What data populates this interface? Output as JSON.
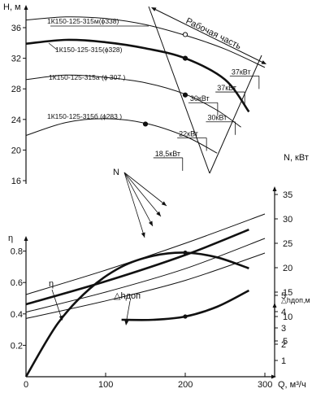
{
  "chart_data": {
    "type": "line",
    "x_axis": {
      "label": "Q, м³/ч",
      "min": 0,
      "max": 300,
      "ticks": [
        0,
        100,
        200,
        300
      ]
    },
    "y_axes": {
      "head": {
        "label": "Н, м",
        "ticks": [
          16,
          20,
          24,
          28,
          32,
          36
        ]
      },
      "efficiency": {
        "label": "η",
        "ticks": [
          0.2,
          0.4,
          0.6,
          0.8
        ]
      },
      "power": {
        "label": "N, кВт",
        "ticks": [
          5,
          10,
          15,
          20,
          25,
          30,
          35
        ]
      },
      "npsh": {
        "label": "△hдоп,м",
        "ticks": [
          1,
          2,
          3,
          4,
          5
        ]
      }
    },
    "annotations": {
      "working_zone": "Рабочая часть",
      "N_label": "N",
      "eta_label": "η",
      "npsh_label": "△hдоп"
    },
    "head_curves": [
      {
        "name": "1К150-125-315м(ϕ338)",
        "x": [
          0,
          50,
          100,
          150,
          200,
          250,
          300
        ],
        "y": [
          37.0,
          37.4,
          37.2,
          36.4,
          35.0,
          33.2,
          30.8
        ]
      },
      {
        "name": "1К150-125-315(ϕ328)",
        "x": [
          0,
          50,
          100,
          150,
          200,
          250,
          280
        ],
        "y": [
          33.9,
          34.4,
          34.1,
          33.3,
          32.0,
          29.2,
          25.0
        ]
      },
      {
        "name": "1К150-125-315а (ϕ 307 )",
        "x": [
          0,
          50,
          100,
          150,
          200,
          240,
          270
        ],
        "y": [
          29.2,
          29.8,
          29.5,
          28.8,
          27.3,
          25.2,
          23.0
        ]
      },
      {
        "name": "1К150-125-315б (ϕ283 )",
        "x": [
          0,
          50,
          100,
          150,
          200,
          240
        ],
        "y": [
          21.9,
          23.6,
          24.1,
          23.5,
          21.8,
          19.6
        ]
      }
    ],
    "motor_power_labels": [
      {
        "text": "37кВт",
        "x": 258,
        "y": 29.9
      },
      {
        "text": "37кВт",
        "x": 240,
        "y": 27.8
      },
      {
        "text": "30кВт",
        "x": 206,
        "y": 26.4
      },
      {
        "text": "30кВт",
        "x": 228,
        "y": 23.9
      },
      {
        "text": "22кВт",
        "x": 192,
        "y": 21.8
      },
      {
        "text": "18,5кВт",
        "x": 162,
        "y": 19.2
      }
    ],
    "power_curves": [
      {
        "x": [
          0,
          100,
          200,
          300
        ],
        "y": [
          14.5,
          19.5,
          25.0,
          31.0
        ]
      },
      {
        "x": [
          0,
          100,
          200,
          280
        ],
        "y": [
          12.5,
          17.2,
          22.6,
          27.8
        ]
      },
      {
        "x": [
          0,
          100,
          200,
          300
        ],
        "y": [
          10.9,
          15.0,
          19.8,
          26.0
        ]
      },
      {
        "x": [
          0,
          100,
          200,
          300
        ],
        "y": [
          9.6,
          13.2,
          17.4,
          23.0
        ]
      }
    ],
    "efficiency_curve": {
      "x": [
        0,
        40,
        80,
        120,
        160,
        200,
        240,
        280
      ],
      "y": [
        0.0,
        0.34,
        0.56,
        0.7,
        0.77,
        0.79,
        0.76,
        0.69
      ]
    },
    "npsh_curve": {
      "x": [
        120,
        160,
        200,
        240,
        280
      ],
      "y": [
        3.5,
        3.5,
        3.7,
        4.3,
        5.3
      ]
    },
    "grid": false
  }
}
